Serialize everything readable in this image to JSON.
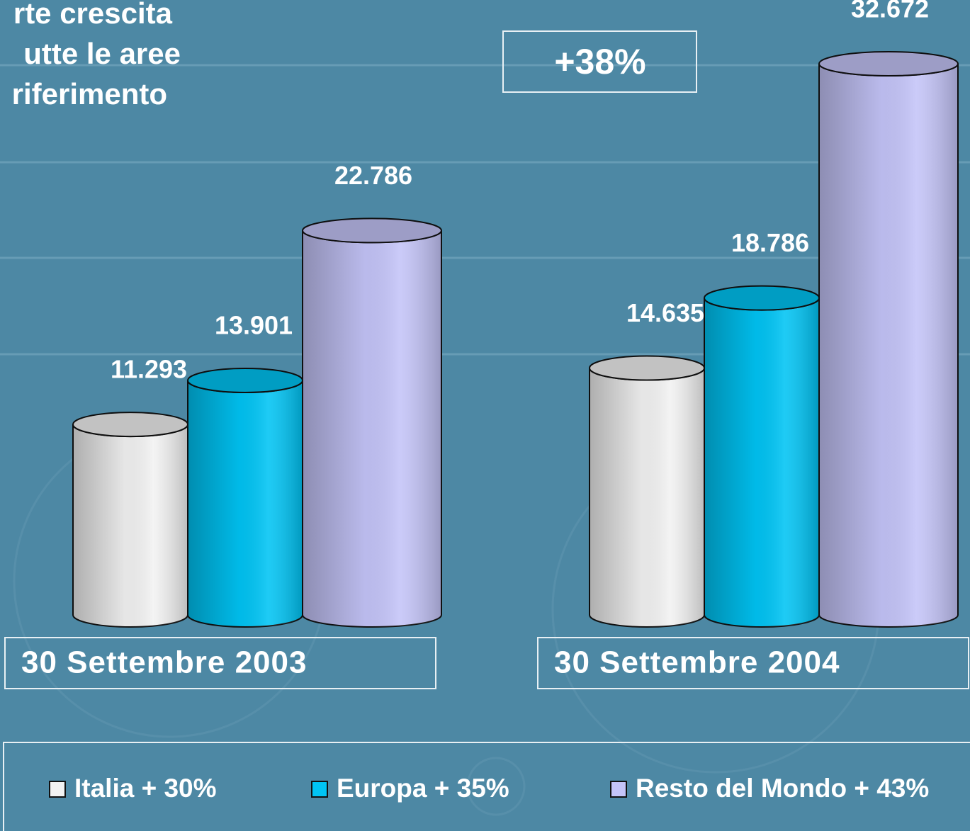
{
  "chart_data": {
    "type": "bar3d",
    "title_lines": [
      "rte crescita",
      "utte le aree",
      "riferimento"
    ],
    "annotation": "+38%",
    "categories": [
      "30 Settembre 2003",
      "30 Settembre 2004"
    ],
    "series": [
      {
        "name": "Italia + 30%",
        "color": "#f2f2f2",
        "values": [
          11293,
          14635
        ],
        "value_labels": [
          "11.293",
          "14.635"
        ]
      },
      {
        "name": "Europa + 35%",
        "color": "#00c4f4",
        "values": [
          13901,
          18786
        ],
        "value_labels": [
          "13.901",
          "18.786"
        ]
      },
      {
        "name": "Resto del Mondo + 43%",
        "color": "#c4c4f8",
        "values": [
          22786,
          32672
        ],
        "value_labels": [
          "22.786",
          "32.672"
        ]
      }
    ]
  }
}
